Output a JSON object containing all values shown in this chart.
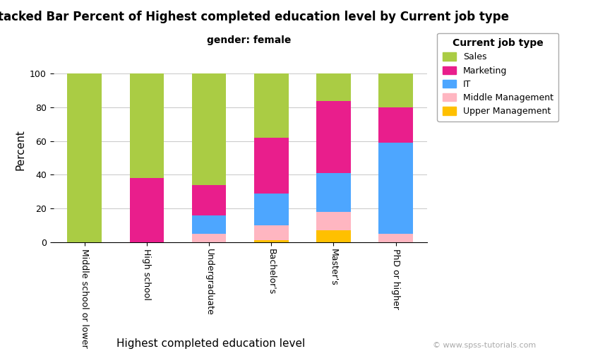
{
  "title": "Stacked Bar Percent of Highest completed education level by Current job type",
  "subtitle": "gender: female",
  "xlabel": "Highest completed education level",
  "ylabel": "Percent",
  "categories": [
    "Middle school or lower",
    "High school",
    "Undergraduate",
    "Bachelor's",
    "Master's",
    "PhD or higher"
  ],
  "legend_title": "Current job type",
  "series": {
    "Upper Management": {
      "color": "#FFC000",
      "values": [
        0,
        0,
        0,
        1,
        7,
        0
      ]
    },
    "Middle Management": {
      "color": "#FFB6C1",
      "values": [
        0,
        0,
        5,
        9,
        11,
        5
      ]
    },
    "IT": {
      "color": "#4DA6FF",
      "values": [
        0,
        0,
        11,
        19,
        23,
        54
      ]
    },
    "Marketing": {
      "color": "#E91E8C",
      "values": [
        0,
        38,
        18,
        33,
        43,
        21
      ]
    },
    "Sales": {
      "color": "#AACC44",
      "values": [
        100,
        62,
        66,
        38,
        16,
        20
      ]
    }
  },
  "stack_order": [
    "Upper Management",
    "Middle Management",
    "IT",
    "Marketing",
    "Sales"
  ],
  "legend_order": [
    "Sales",
    "Marketing",
    "IT",
    "Middle Management",
    "Upper Management"
  ],
  "ylim": [
    0,
    110
  ],
  "yticks": [
    0,
    20,
    40,
    60,
    80,
    100
  ],
  "background_color": "#ffffff",
  "plot_background": "#ffffff",
  "grid_color": "#cccccc",
  "watermark": "© www.spss-tutorials.com",
  "title_fontsize": 12,
  "subtitle_fontsize": 10,
  "axis_label_fontsize": 11,
  "legend_fontsize": 9,
  "tick_fontsize": 9,
  "bar_width": 0.55
}
